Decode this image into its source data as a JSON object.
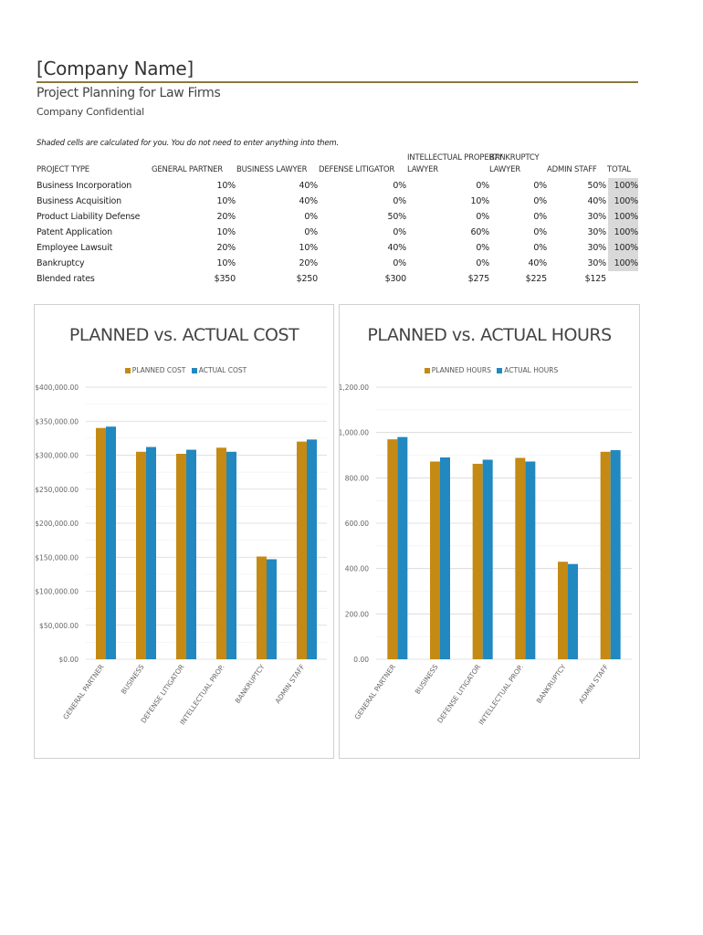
{
  "header": {
    "company": "[Company Name]",
    "subtitle": "Project Planning for Law Firms",
    "confidential": "Company Confidential",
    "note": "Shaded cells are calculated for you. You do not need to enter anything into them."
  },
  "table": {
    "columns": {
      "project_type": "PROJECT TYPE",
      "general_partner": "GENERAL PARTNER",
      "business_lawyer": "BUSINESS LAWYER",
      "defense_litigator": "DEFENSE LITIGATOR",
      "ip_line1": "INTELLECTUAL PROPERTY",
      "ip_line2": "LAWYER",
      "bankruptcy_line1": "BANKRUPTCY",
      "bankruptcy_line2": "LAWYER",
      "admin_staff": "ADMIN STAFF",
      "total": "TOTAL"
    },
    "rows": [
      {
        "type": "Business Incorporation",
        "gp": "10%",
        "bl": "40%",
        "dl": "0%",
        "ip": "0%",
        "bk": "0%",
        "as": "50%",
        "total": "100%"
      },
      {
        "type": "Business Acquisition",
        "gp": "10%",
        "bl": "40%",
        "dl": "0%",
        "ip": "10%",
        "bk": "0%",
        "as": "40%",
        "total": "100%"
      },
      {
        "type": "Product Liability Defense",
        "gp": "20%",
        "bl": "0%",
        "dl": "50%",
        "ip": "0%",
        "bk": "0%",
        "as": "30%",
        "total": "100%"
      },
      {
        "type": "Patent Application",
        "gp": "10%",
        "bl": "0%",
        "dl": "0%",
        "ip": "60%",
        "bk": "0%",
        "as": "30%",
        "total": "100%"
      },
      {
        "type": "Employee Lawsuit",
        "gp": "20%",
        "bl": "10%",
        "dl": "40%",
        "ip": "0%",
        "bk": "0%",
        "as": "30%",
        "total": "100%"
      },
      {
        "type": "Bankruptcy",
        "gp": "10%",
        "bl": "20%",
        "dl": "0%",
        "ip": "0%",
        "bk": "40%",
        "as": "30%",
        "total": "100%"
      }
    ],
    "blended": {
      "type": "Blended rates",
      "gp": "$350",
      "bl": "$250",
      "dl": "$300",
      "ip": "$275",
      "bk": "$225",
      "as": "$125"
    }
  },
  "colors": {
    "planned": "#c48a14",
    "actual": "#2188c0",
    "shade": "#d9d9d9",
    "rule": "#8a7a3a"
  },
  "chart_data": [
    {
      "type": "bar",
      "title": "PLANNED vs. ACTUAL COST",
      "categories": [
        "GENERAL PARTNER",
        "BUSINESS",
        "DEFENSE LITIGATOR",
        "INTELLECTUAL PROP.",
        "BANKRUPTCY",
        "ADMIN STAFF"
      ],
      "series": [
        {
          "name": "PLANNED COST",
          "values": [
            340000,
            305000,
            302000,
            311000,
            151000,
            320000
          ]
        },
        {
          "name": "ACTUAL COST",
          "values": [
            342000,
            312000,
            308000,
            305000,
            147000,
            323000
          ]
        }
      ],
      "ylim": [
        0,
        400000
      ],
      "yticks": [
        "$0.00",
        "$50,000.00",
        "$100,000.00",
        "$150,000.00",
        "$200,000.00",
        "$250,000.00",
        "$300,000.00",
        "$350,000.00",
        "$400,000.00"
      ],
      "legend": "top",
      "grid": true
    },
    {
      "type": "bar",
      "title": "PLANNED vs. ACTUAL HOURS",
      "categories": [
        "GENERAL PARTNER",
        "BUSINESS",
        "DEFENSE LITIGATOR",
        "INTELLECTUAL PROP.",
        "BANKRUPTCY",
        "ADMIN STAFF"
      ],
      "series": [
        {
          "name": "PLANNED HOURS",
          "values": [
            970,
            872,
            862,
            888,
            430,
            915
          ]
        },
        {
          "name": "ACTUAL HOURS",
          "values": [
            980,
            890,
            880,
            872,
            420,
            922
          ]
        }
      ],
      "ylim": [
        0,
        1200
      ],
      "yticks": [
        "0.00",
        "200.00",
        "400.00",
        "600.00",
        "800.00",
        "1,000.00",
        "1,200.00"
      ],
      "legend": "top",
      "grid": true
    }
  ]
}
